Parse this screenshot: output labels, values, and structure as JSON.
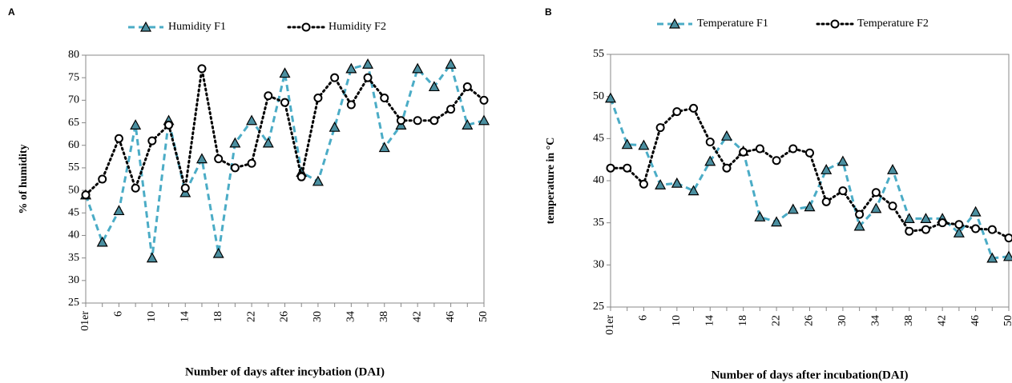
{
  "chart_data": [
    {
      "type": "line",
      "label": "A",
      "y_label": "% of  humidity",
      "x_label": "Number of days after incybation (DAI)",
      "categories": [
        "01er",
        null,
        "6",
        null,
        "10",
        null,
        "14",
        null,
        "18",
        null,
        "22",
        null,
        "26",
        null,
        "30",
        null,
        "34",
        null,
        "38",
        null,
        "42",
        null,
        "46",
        null,
        "50"
      ],
      "ylim": [
        25,
        80
      ],
      "yticks": [
        25,
        30,
        35,
        40,
        45,
        50,
        55,
        60,
        65,
        70,
        75,
        80
      ],
      "series": [
        {
          "name": "Humidity F1",
          "color": "#4bacc6",
          "values": [
            49,
            38.5,
            45.5,
            64.5,
            35,
            65.5,
            49.5,
            57,
            36,
            60.5,
            65.5,
            60.5,
            76,
            54,
            52,
            64,
            77,
            78,
            59.5,
            64.5,
            77,
            73,
            78,
            64.5,
            65.5
          ]
        },
        {
          "name": "Humidity F2",
          "color": "#000000",
          "values": [
            49,
            52.5,
            61.5,
            50.5,
            61,
            64.5,
            50.5,
            77,
            57,
            55,
            56,
            71,
            69.5,
            53,
            70.5,
            75,
            69,
            75,
            70.5,
            65.5,
            65.5,
            65.5,
            68,
            73,
            70
          ]
        }
      ]
    },
    {
      "type": "line",
      "label": "B",
      "y_label": "temperature in °C",
      "x_label": "Number of days after incubation(DAI)",
      "categories": [
        "01er",
        null,
        "6",
        null,
        "10",
        null,
        "14",
        null,
        "18",
        null,
        "22",
        null,
        "26",
        null,
        "30",
        null,
        "34",
        null,
        "38",
        null,
        "42",
        null,
        "46",
        null,
        "50"
      ],
      "ylim": [
        25,
        55
      ],
      "yticks": [
        25,
        30,
        35,
        40,
        45,
        50,
        55
      ],
      "series": [
        {
          "name": "Temperature F1",
          "color": "#4bacc6",
          "values": [
            49.8,
            44.3,
            44.2,
            39.5,
            39.7,
            38.8,
            42.3,
            45.3,
            43.5,
            35.7,
            35.1,
            36.6,
            36.9,
            41.3,
            42.3,
            34.6,
            36.7,
            41.3,
            35.5,
            35.5,
            35.5,
            33.8,
            36.3,
            30.8,
            31
          ]
        },
        {
          "name": "Temperature F2",
          "color": "#000000",
          "values": [
            41.5,
            41.5,
            39.6,
            46.3,
            48.2,
            48.6,
            44.6,
            41.5,
            43.4,
            43.8,
            42.4,
            43.8,
            43.3,
            37.5,
            38.8,
            36,
            38.6,
            37,
            34,
            34.2,
            35,
            34.8,
            34.3,
            34.2,
            33.2
          ]
        }
      ]
    }
  ]
}
